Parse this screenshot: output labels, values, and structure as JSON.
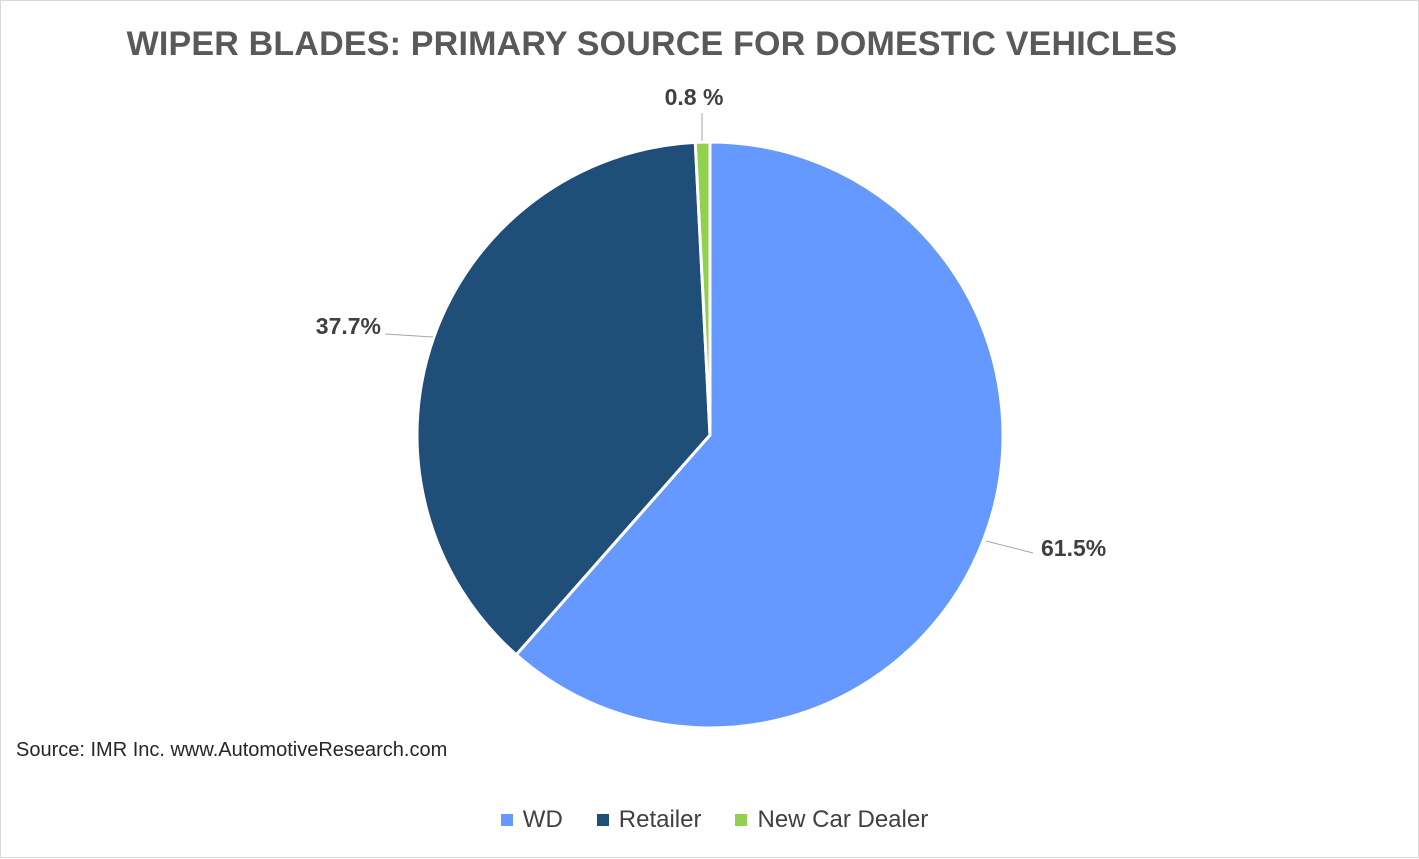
{
  "chart_data": {
    "type": "pie",
    "title": "WIPER BLADES: PRIMARY SOURCE FOR DOMESTIC VEHICLES",
    "categories": [
      "WD",
      "Retailer",
      "New Car Dealer"
    ],
    "values": [
      61.5,
      37.7,
      0.8
    ],
    "data_labels": [
      "61.5%",
      "37.7%",
      "0.8 %"
    ],
    "colors": [
      "#6699ff",
      "#1f4e79",
      "#92d050"
    ],
    "legend_position": "bottom",
    "start_angle": "12 o'clock, clockwise"
  },
  "source_note": "Source: IMR Inc. www.AutomotiveResearch.com"
}
